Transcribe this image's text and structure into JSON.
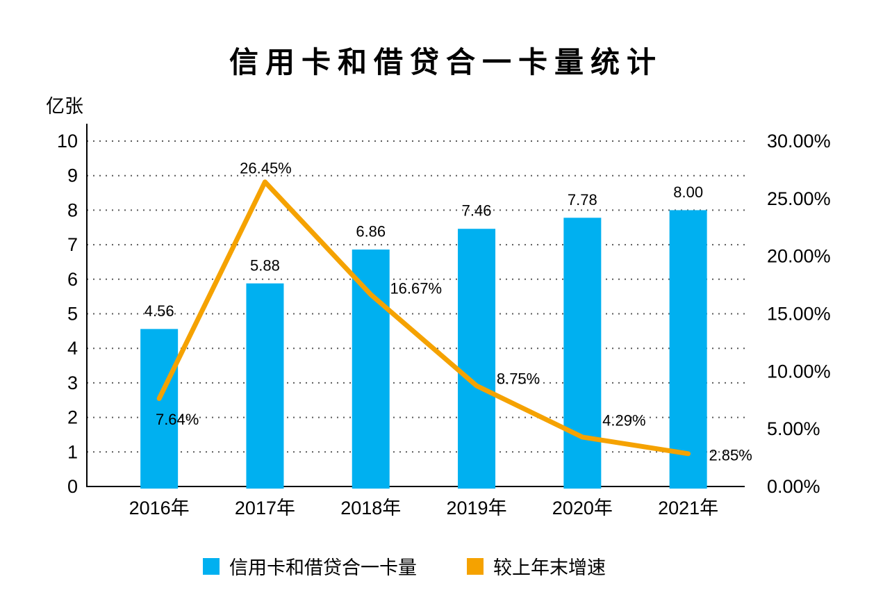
{
  "chart_data": {
    "type": "combo-bar-line",
    "title": "信用卡和借贷合一卡量统计",
    "ylabel": "亿张",
    "categories": [
      "2016年",
      "2017年",
      "2018年",
      "2019年",
      "2020年",
      "2021年"
    ],
    "series": [
      {
        "name": "信用卡和借贷合一卡量",
        "type": "bar",
        "axis": "left",
        "color": "#00B0F0",
        "values": [
          4.56,
          5.88,
          6.86,
          7.46,
          7.78,
          8.0
        ],
        "labels": [
          "4.56",
          "5.88",
          "6.86",
          "7.46",
          "7.78",
          "8.00"
        ]
      },
      {
        "name": "较上年末增速",
        "type": "line",
        "axis": "right",
        "color": "#F5A200",
        "values": [
          7.64,
          26.45,
          16.67,
          8.75,
          4.29,
          2.85
        ],
        "labels": [
          "7.64%",
          "26.45%",
          "16.67%",
          "8.75%",
          "4.29%",
          "2.85%"
        ],
        "label_offsets": [
          [
            26,
            30
          ],
          [
            1,
            -20
          ],
          [
            65,
            -9
          ],
          [
            60,
            -10
          ],
          [
            60,
            -24
          ],
          [
            61,
            2
          ]
        ]
      }
    ],
    "axes": {
      "left": {
        "min": 0,
        "max": 10,
        "step": 1,
        "tick_labels": [
          "0",
          "1",
          "2",
          "3",
          "4",
          "5",
          "6",
          "7",
          "8",
          "9",
          "10"
        ]
      },
      "right": {
        "min": 0,
        "max": 30,
        "step": 5,
        "tick_labels": [
          "0.00%",
          "5.00%",
          "10.00%",
          "15.00%",
          "20.00%",
          "25.00%",
          "30.00%"
        ]
      }
    },
    "grid": {
      "horizontal": true,
      "style": "dotted",
      "color": "#595959"
    },
    "axis_line_color": "#000000",
    "legend_position": "bottom"
  }
}
